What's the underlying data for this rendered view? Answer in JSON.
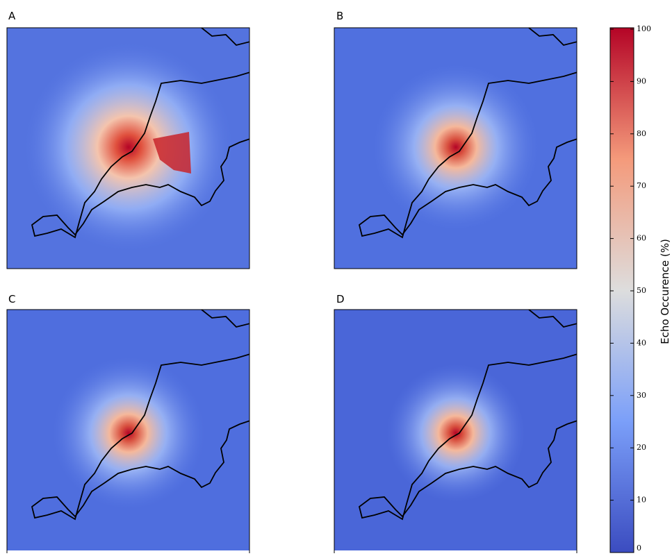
{
  "panels": [
    {
      "label": "A"
    },
    {
      "label": "B"
    },
    {
      "label": "C"
    },
    {
      "label": "D"
    }
  ],
  "colorbar": {
    "label": "Echo Occurence (%)",
    "lim": [
      0,
      100
    ],
    "ticks": [
      0,
      10,
      20,
      30,
      40,
      50,
      60,
      70,
      80,
      90,
      100
    ]
  }
}
